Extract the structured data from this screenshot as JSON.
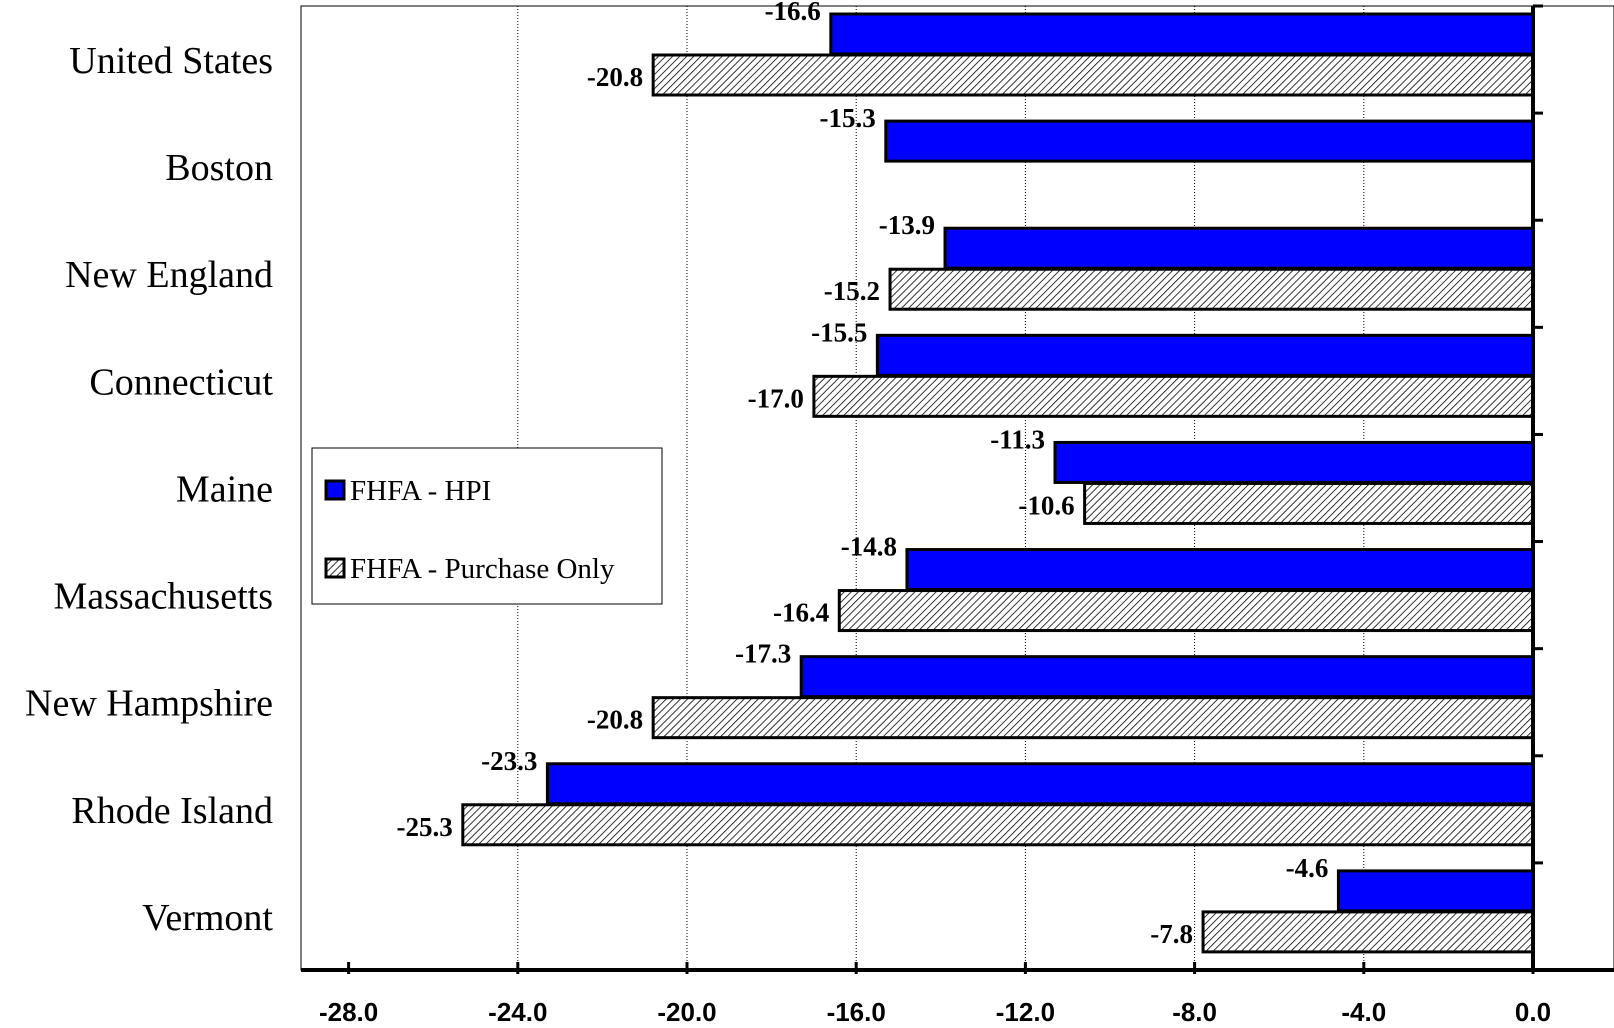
{
  "chart_data": {
    "type": "bar",
    "orientation": "horizontal",
    "categories": [
      "United States",
      "Boston",
      "New England",
      "Connecticut",
      "Maine",
      "Massachusetts",
      "New Hampshire",
      "Rhode Island",
      "Vermont"
    ],
    "series": [
      {
        "name": "FHFA - HPI",
        "color": "#0000ff",
        "pattern": "solid",
        "values": [
          -16.6,
          -15.3,
          -13.9,
          -15.5,
          -11.3,
          -14.8,
          -17.3,
          -23.3,
          -4.6
        ],
        "labels": [
          "-16.6",
          "-15.3",
          "-13.9",
          "-15.5",
          "-11.3",
          "-14.8",
          "-17.3",
          "-23.3",
          "-4.6"
        ]
      },
      {
        "name": "FHFA - Purchase Only",
        "color": "#ffffff",
        "pattern": "diagonal-hatch",
        "values": [
          -20.8,
          null,
          -15.2,
          -17.0,
          -10.6,
          -16.4,
          -20.8,
          -25.3,
          -7.8
        ],
        "labels": [
          "-20.8",
          null,
          "-15.2",
          "-17.0",
          "-10.6",
          "-16.4",
          "-20.8",
          "-25.3",
          "-7.8"
        ]
      }
    ],
    "xlim": [
      -28.0,
      0.0
    ],
    "xticks": [
      "-28.0",
      "-24.0",
      "-20.0",
      "-16.0",
      "-12.0",
      "-8.0",
      "-4.0",
      "0.0"
    ],
    "grid": "vertical-dotted",
    "legend": "middle-left"
  }
}
